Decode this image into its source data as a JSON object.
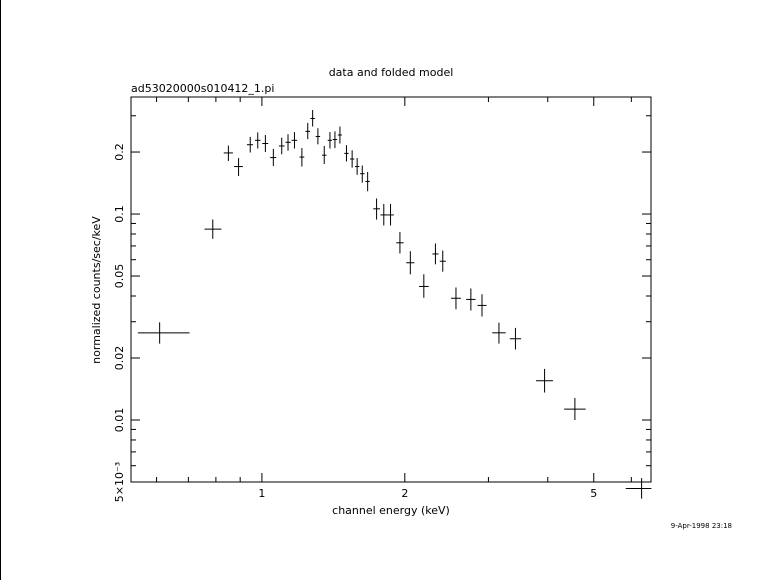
{
  "title": "data and folded model",
  "filename": "ad53020000s010412_1.pi",
  "timestamp": "9-Apr-1998 23:18",
  "chart_data": {
    "type": "scatter",
    "title": "data and folded model",
    "subtitle": "ad53020000s010412_1.pi",
    "xlabel": "channel energy (keV)",
    "ylabel": "normalized counts/sec/keV",
    "xscale": "log",
    "yscale": "log",
    "xlim": [
      0.53,
      6.6
    ],
    "ylim": [
      0.005,
      0.37
    ],
    "x_ticks": [
      {
        "value": 1,
        "label": "1"
      },
      {
        "value": 2,
        "label": "2"
      },
      {
        "value": 5,
        "label": "5"
      }
    ],
    "y_ticks": [
      {
        "value": 0.005,
        "label": "5×10⁻³"
      },
      {
        "value": 0.01,
        "label": "0.01"
      },
      {
        "value": 0.02,
        "label": "0.02"
      },
      {
        "value": 0.05,
        "label": "0.05"
      },
      {
        "value": 0.1,
        "label": "0.1"
      },
      {
        "value": 0.2,
        "label": "0.2"
      }
    ],
    "grid": false,
    "legend": "none",
    "points": [
      {
        "x": 0.609,
        "xlo": 0.548,
        "xhi": 0.704,
        "y": 0.0265,
        "ylo": 0.0235,
        "yhi": 0.0298
      },
      {
        "x": 0.788,
        "xlo": 0.757,
        "xhi": 0.822,
        "y": 0.0845,
        "ylo": 0.0758,
        "yhi": 0.0941
      },
      {
        "x": 0.85,
        "xlo": 0.831,
        "xhi": 0.869,
        "y": 0.198,
        "ylo": 0.181,
        "yhi": 0.215
      },
      {
        "x": 0.893,
        "xlo": 0.874,
        "xhi": 0.912,
        "y": 0.17,
        "ylo": 0.153,
        "yhi": 0.187
      },
      {
        "x": 0.945,
        "xlo": 0.93,
        "xhi": 0.958,
        "y": 0.217,
        "ylo": 0.199,
        "yhi": 0.237
      },
      {
        "x": 0.98,
        "xlo": 0.967,
        "xhi": 0.993,
        "y": 0.228,
        "ylo": 0.208,
        "yhi": 0.249
      },
      {
        "x": 1.017,
        "xlo": 1.002,
        "xhi": 1.031,
        "y": 0.22,
        "ylo": 0.2,
        "yhi": 0.242
      },
      {
        "x": 1.057,
        "xlo": 1.041,
        "xhi": 1.072,
        "y": 0.188,
        "ylo": 0.171,
        "yhi": 0.207
      },
      {
        "x": 1.101,
        "xlo": 1.086,
        "xhi": 1.116,
        "y": 0.214,
        "ylo": 0.195,
        "yhi": 0.235
      },
      {
        "x": 1.135,
        "xlo": 1.121,
        "xhi": 1.15,
        "y": 0.223,
        "ylo": 0.203,
        "yhi": 0.244
      },
      {
        "x": 1.171,
        "xlo": 1.155,
        "xhi": 1.186,
        "y": 0.228,
        "ylo": 0.208,
        "yhi": 0.25
      },
      {
        "x": 1.214,
        "xlo": 1.2,
        "xhi": 1.228,
        "y": 0.189,
        "ylo": 0.17,
        "yhi": 0.209
      },
      {
        "x": 1.249,
        "xlo": 1.235,
        "xhi": 1.263,
        "y": 0.252,
        "ylo": 0.231,
        "yhi": 0.277
      },
      {
        "x": 1.279,
        "xlo": 1.265,
        "xhi": 1.293,
        "y": 0.291,
        "ylo": 0.266,
        "yhi": 0.32
      },
      {
        "x": 1.312,
        "xlo": 1.298,
        "xhi": 1.326,
        "y": 0.238,
        "ylo": 0.218,
        "yhi": 0.261
      },
      {
        "x": 1.353,
        "xlo": 1.339,
        "xhi": 1.368,
        "y": 0.193,
        "ylo": 0.175,
        "yhi": 0.214
      },
      {
        "x": 1.391,
        "xlo": 1.376,
        "xhi": 1.405,
        "y": 0.228,
        "ylo": 0.208,
        "yhi": 0.25
      },
      {
        "x": 1.425,
        "xlo": 1.41,
        "xhi": 1.44,
        "y": 0.23,
        "ylo": 0.209,
        "yhi": 0.252
      },
      {
        "x": 1.46,
        "xlo": 1.445,
        "xhi": 1.474,
        "y": 0.242,
        "ylo": 0.22,
        "yhi": 0.266
      },
      {
        "x": 1.507,
        "xlo": 1.491,
        "xhi": 1.523,
        "y": 0.197,
        "ylo": 0.18,
        "yhi": 0.216
      },
      {
        "x": 1.549,
        "xlo": 1.533,
        "xhi": 1.565,
        "y": 0.185,
        "ylo": 0.168,
        "yhi": 0.204
      },
      {
        "x": 1.587,
        "xlo": 1.571,
        "xhi": 1.604,
        "y": 0.17,
        "ylo": 0.155,
        "yhi": 0.187
      },
      {
        "x": 1.627,
        "xlo": 1.61,
        "xhi": 1.645,
        "y": 0.157,
        "ylo": 0.142,
        "yhi": 0.172
      },
      {
        "x": 1.67,
        "xlo": 1.652,
        "xhi": 1.688,
        "y": 0.144,
        "ylo": 0.129,
        "yhi": 0.16
      },
      {
        "x": 1.744,
        "xlo": 1.716,
        "xhi": 1.773,
        "y": 0.106,
        "ylo": 0.094,
        "yhi": 0.119
      },
      {
        "x": 1.806,
        "xlo": 1.777,
        "xhi": 1.835,
        "y": 0.099,
        "ylo": 0.088,
        "yhi": 0.112
      },
      {
        "x": 1.866,
        "xlo": 1.836,
        "xhi": 1.896,
        "y": 0.099,
        "ylo": 0.088,
        "yhi": 0.112
      },
      {
        "x": 1.953,
        "xlo": 1.918,
        "xhi": 1.988,
        "y": 0.0725,
        "ylo": 0.0643,
        "yhi": 0.0817
      },
      {
        "x": 2.054,
        "xlo": 2.014,
        "xhi": 2.095,
        "y": 0.058,
        "ylo": 0.051,
        "yhi": 0.066
      },
      {
        "x": 2.193,
        "xlo": 2.143,
        "xhi": 2.245,
        "y": 0.0445,
        "ylo": 0.0392,
        "yhi": 0.051
      },
      {
        "x": 2.32,
        "xlo": 2.286,
        "xhi": 2.355,
        "y": 0.064,
        "ylo": 0.057,
        "yhi": 0.072
      },
      {
        "x": 2.404,
        "xlo": 2.369,
        "xhi": 2.44,
        "y": 0.059,
        "ylo": 0.0525,
        "yhi": 0.0665
      },
      {
        "x": 2.563,
        "xlo": 2.503,
        "xhi": 2.625,
        "y": 0.039,
        "ylo": 0.0345,
        "yhi": 0.044
      },
      {
        "x": 2.755,
        "xlo": 2.693,
        "xhi": 2.818,
        "y": 0.0385,
        "ylo": 0.034,
        "yhi": 0.0435
      },
      {
        "x": 2.908,
        "xlo": 2.845,
        "xhi": 2.973,
        "y": 0.036,
        "ylo": 0.0318,
        "yhi": 0.0408
      },
      {
        "x": 3.157,
        "xlo": 3.056,
        "xhi": 3.262,
        "y": 0.0265,
        "ylo": 0.0235,
        "yhi": 0.0297
      },
      {
        "x": 3.42,
        "xlo": 3.328,
        "xhi": 3.515,
        "y": 0.0248,
        "ylo": 0.022,
        "yhi": 0.028
      },
      {
        "x": 3.939,
        "xlo": 3.78,
        "xhi": 4.102,
        "y": 0.0155,
        "ylo": 0.0136,
        "yhi": 0.0177
      },
      {
        "x": 4.563,
        "xlo": 4.331,
        "xhi": 4.808,
        "y": 0.0113,
        "ylo": 0.01,
        "yhi": 0.0128
      },
      {
        "x": 6.306,
        "xlo": 5.839,
        "xhi": 6.612,
        "y": 0.00465,
        "ylo": 0.00415,
        "yhi": 0.00522
      }
    ]
  }
}
